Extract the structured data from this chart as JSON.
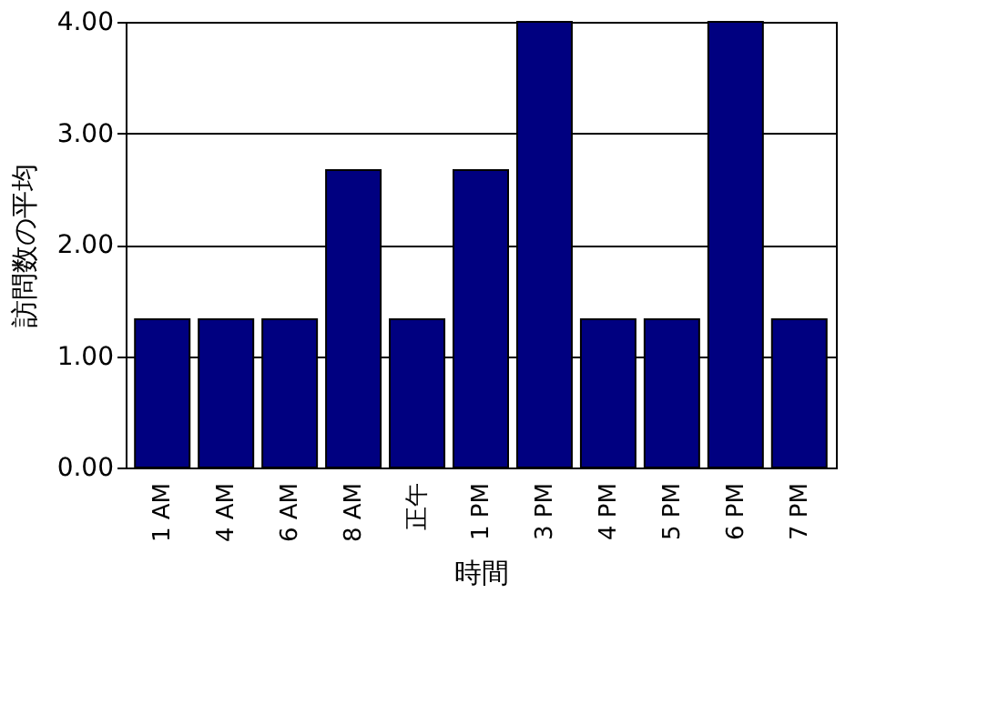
{
  "chart_data": {
    "type": "bar",
    "xlabel": "時間",
    "ylabel": "訪問数の平均",
    "categories": [
      "1 AM",
      "4 AM",
      "6 AM",
      "8 AM",
      "正午",
      "1 PM",
      "3 PM",
      "4 PM",
      "5 PM",
      "6 PM",
      "7 PM"
    ],
    "values": [
      1.33,
      1.33,
      1.33,
      2.67,
      1.33,
      2.67,
      4.0,
      1.33,
      1.33,
      4.0,
      1.33
    ],
    "color": "#000080",
    "ylim": [
      0,
      4
    ],
    "yticks": [
      {
        "value": 0,
        "label": "0.00"
      },
      {
        "value": 1,
        "label": "1.00"
      },
      {
        "value": 2,
        "label": "2.00"
      },
      {
        "value": 3,
        "label": "3.00"
      },
      {
        "value": 4,
        "label": "4.00"
      }
    ],
    "grid": "y"
  }
}
